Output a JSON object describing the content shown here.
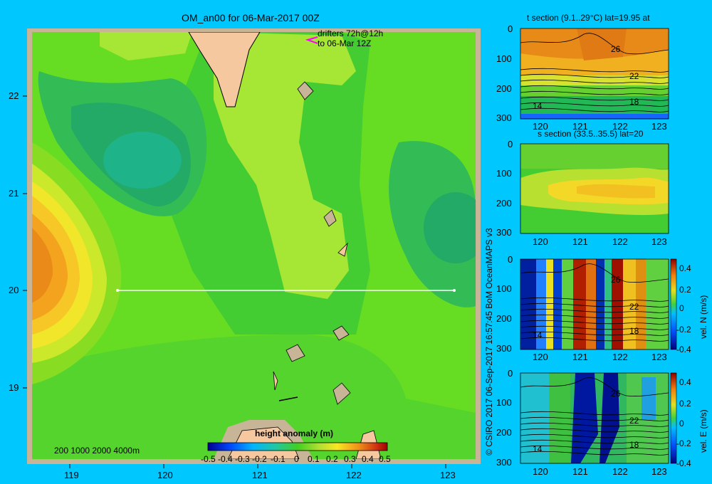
{
  "main_map": {
    "title": "OM_an00 for 06-Mar-2017 00Z",
    "xticks": [
      "119",
      "120",
      "121",
      "122",
      "123"
    ],
    "yticks": [
      "22",
      "21",
      "20",
      "19"
    ],
    "drifters_line1": "drifters 72h@12h",
    "drifters_line2": "to 06-Mar 12Z",
    "depth_legend": "200  1000  2000  4000m",
    "section_latitude": 20
  },
  "colorbar": {
    "label": "height anomaly (m)",
    "ticks": [
      "-0.5",
      "-0.4",
      "-0.3",
      "-0.2",
      "-0.1",
      "0",
      "0.1",
      "0.2",
      "0.3",
      "0.4",
      "0.5"
    ]
  },
  "credit": "© CSIRO 2017   06-Sep-2017 16:57:45 BoM OceanMAPS v3",
  "panels": [
    {
      "title": "t section (9.1..29°C) lat=19.95 at",
      "yticks": [
        "0",
        "100",
        "200",
        "300"
      ],
      "xticks": [
        "120",
        "121",
        "122",
        "123"
      ],
      "contour_labels": [
        "26",
        "22",
        "18",
        "14"
      ],
      "cbar_label": "",
      "cbar_ticks": []
    },
    {
      "title": "s section (33.5..35.5) lat=20",
      "yticks": [
        "0",
        "100",
        "200",
        "300"
      ],
      "xticks": [
        "120",
        "121",
        "122",
        "123"
      ],
      "contour_labels": [],
      "cbar_label": "",
      "cbar_ticks": []
    },
    {
      "title": "",
      "yticks": [
        "0",
        "100",
        "200",
        "300"
      ],
      "xticks": [
        "120",
        "121",
        "122",
        "123"
      ],
      "contour_labels": [
        "26",
        "22",
        "18",
        "14"
      ],
      "cbar_label": "vel. N (m/s)",
      "cbar_ticks": [
        "0.4",
        "0.2",
        "0",
        "-0.2",
        "-0.4"
      ]
    },
    {
      "title": "",
      "yticks": [
        "0",
        "100",
        "200",
        "300"
      ],
      "xticks": [
        "120",
        "121",
        "122",
        "123"
      ],
      "contour_labels": [
        "26",
        "22",
        "18",
        "14"
      ],
      "cbar_label": "vel. E (m/s)",
      "cbar_ticks": [
        "0.4",
        "0.2",
        "0",
        "-0.2",
        "-0.4"
      ]
    }
  ],
  "chart_data": [
    {
      "type": "heatmap",
      "title": "OM_an00 for 06-Mar-2017 00Z",
      "xlabel": "",
      "ylabel": "",
      "xlim": [
        118.5,
        123.5
      ],
      "ylim": [
        18.3,
        22.7
      ],
      "colorbar": {
        "label": "height anomaly (m)",
        "range": [
          -0.5,
          0.5
        ]
      },
      "features": [
        {
          "name": "positive anomaly",
          "lon": 118.6,
          "lat": 20.3,
          "value": 0.3
        },
        {
          "name": "negative anomaly",
          "lon": 119.9,
          "lat": 21.4,
          "value": -0.1
        },
        {
          "name": "negative anomaly",
          "lon": 123.3,
          "lat": 20.8,
          "value": -0.1
        },
        {
          "name": "ridge",
          "lon": 121.6,
          "lat": 21.5,
          "value": 0.1
        }
      ],
      "section_line": {
        "lat": 20,
        "lon_start": 119.5,
        "lon_end": 123.2
      }
    },
    {
      "type": "heatmap",
      "title": "t section (9.1..29°C) lat=19.95 at",
      "x": [
        120,
        121,
        122,
        123
      ],
      "ylim": [
        300,
        0
      ],
      "contours": [
        26,
        22,
        18,
        14
      ]
    },
    {
      "type": "heatmap",
      "title": "s section (33.5..35.5) lat=20",
      "x": [
        120,
        121,
        122,
        123
      ],
      "ylim": [
        300,
        0
      ]
    },
    {
      "type": "heatmap",
      "title": "",
      "x": [
        120,
        121,
        122,
        123
      ],
      "ylim": [
        300,
        0
      ],
      "colorbar": {
        "label": "vel. N (m/s)",
        "range": [
          -0.4,
          0.4
        ]
      }
    },
    {
      "type": "heatmap",
      "title": "",
      "x": [
        120,
        121,
        122,
        123
      ],
      "ylim": [
        300,
        0
      ],
      "colorbar": {
        "label": "vel. E (m/s)",
        "range": [
          -0.4,
          0.4
        ]
      }
    }
  ]
}
